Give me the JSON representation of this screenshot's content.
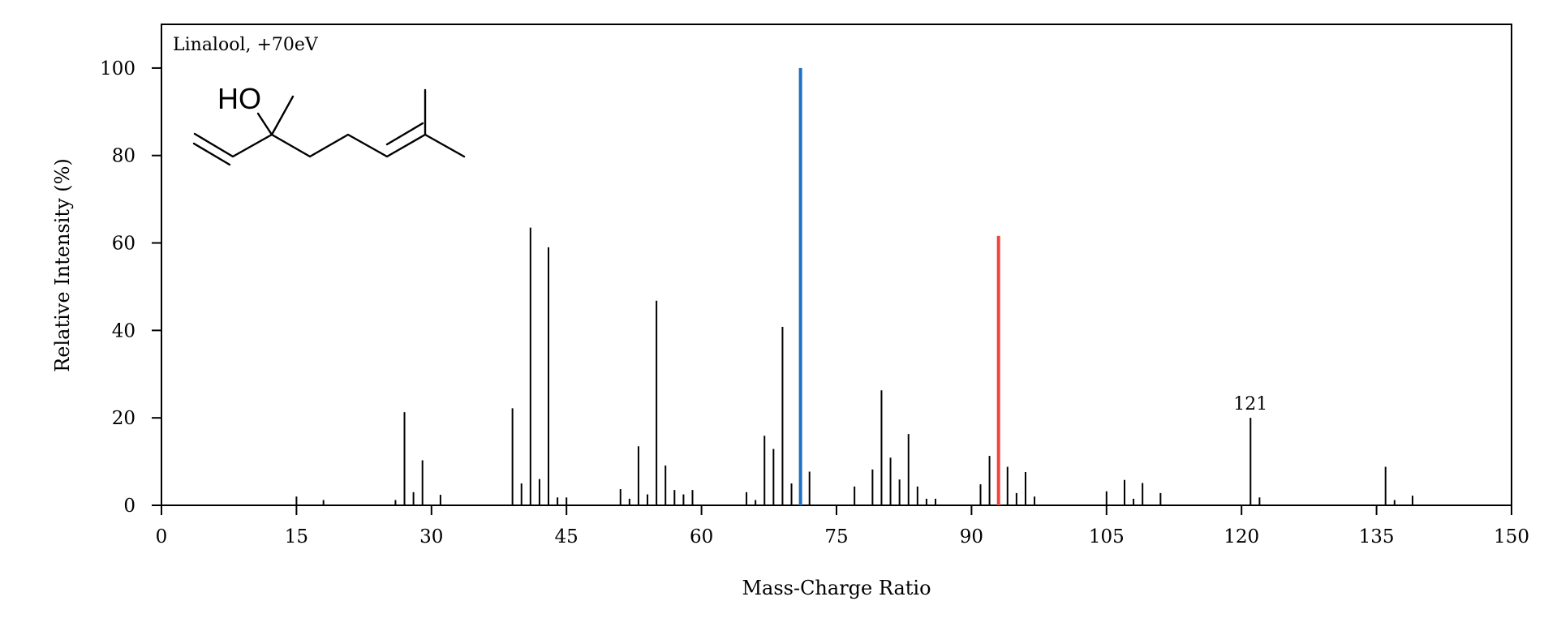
{
  "chart_data": {
    "type": "bar",
    "title": "Linalool, +70eV",
    "xlabel": "Mass-Charge Ratio",
    "ylabel": "Relative Intensity (%)",
    "xlim": [
      0,
      150
    ],
    "ylim": [
      0,
      110
    ],
    "xticks": [
      0,
      15,
      30,
      45,
      60,
      75,
      90,
      105,
      120,
      135,
      150
    ],
    "yticks": [
      0,
      20,
      40,
      60,
      80,
      100
    ],
    "grid": false,
    "molecule": {
      "label": "HO"
    },
    "annotations": [
      {
        "x": 121,
        "label": "121"
      }
    ],
    "highlight_colors": {
      "71": "#1f6fc6",
      "93": "#f0453e"
    },
    "peaks": [
      {
        "x": 15,
        "y": 2
      },
      {
        "x": 18,
        "y": 1.2
      },
      {
        "x": 26,
        "y": 1.2
      },
      {
        "x": 27,
        "y": 21.3
      },
      {
        "x": 28,
        "y": 3
      },
      {
        "x": 29,
        "y": 10.3
      },
      {
        "x": 31,
        "y": 2.4
      },
      {
        "x": 39,
        "y": 22.2
      },
      {
        "x": 40,
        "y": 5
      },
      {
        "x": 41,
        "y": 63.5
      },
      {
        "x": 42,
        "y": 6
      },
      {
        "x": 43,
        "y": 59
      },
      {
        "x": 44,
        "y": 1.8
      },
      {
        "x": 45,
        "y": 1.8
      },
      {
        "x": 51,
        "y": 3.7
      },
      {
        "x": 52,
        "y": 1.5
      },
      {
        "x": 53,
        "y": 13.5
      },
      {
        "x": 54,
        "y": 2.5
      },
      {
        "x": 55,
        "y": 46.8
      },
      {
        "x": 56,
        "y": 9.1
      },
      {
        "x": 57,
        "y": 3.5
      },
      {
        "x": 58,
        "y": 2.5
      },
      {
        "x": 59,
        "y": 3.5
      },
      {
        "x": 65,
        "y": 3
      },
      {
        "x": 66,
        "y": 1.2
      },
      {
        "x": 67,
        "y": 15.9
      },
      {
        "x": 68,
        "y": 12.9
      },
      {
        "x": 69,
        "y": 40.8
      },
      {
        "x": 70,
        "y": 5
      },
      {
        "x": 71,
        "y": 100
      },
      {
        "x": 72,
        "y": 7.7
      },
      {
        "x": 77,
        "y": 4.3
      },
      {
        "x": 79,
        "y": 8.2
      },
      {
        "x": 80,
        "y": 26.3
      },
      {
        "x": 81,
        "y": 10.9
      },
      {
        "x": 82,
        "y": 5.9
      },
      {
        "x": 83,
        "y": 16.3
      },
      {
        "x": 84,
        "y": 4.3
      },
      {
        "x": 85,
        "y": 1.5
      },
      {
        "x": 86,
        "y": 1.5
      },
      {
        "x": 91,
        "y": 4.8
      },
      {
        "x": 92,
        "y": 11.3
      },
      {
        "x": 93,
        "y": 61.6
      },
      {
        "x": 94,
        "y": 8.8
      },
      {
        "x": 95,
        "y": 2.8
      },
      {
        "x": 96,
        "y": 7.6
      },
      {
        "x": 97,
        "y": 2
      },
      {
        "x": 105,
        "y": 3.2
      },
      {
        "x": 107,
        "y": 5.8
      },
      {
        "x": 108,
        "y": 1.5
      },
      {
        "x": 109,
        "y": 5.1
      },
      {
        "x": 111,
        "y": 2.8
      },
      {
        "x": 121,
        "y": 20
      },
      {
        "x": 122,
        "y": 1.8
      },
      {
        "x": 136,
        "y": 8.8
      },
      {
        "x": 137,
        "y": 1.2
      },
      {
        "x": 139,
        "y": 2.2
      }
    ]
  }
}
